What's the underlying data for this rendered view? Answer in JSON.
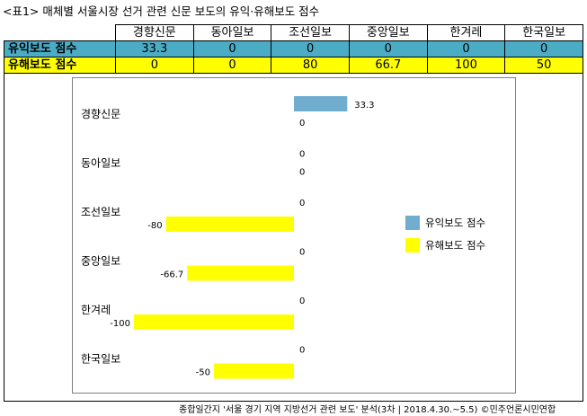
{
  "caption": "<표1> 매체별 서울시장 선거 관련 신문 보도의 유익·유해보도 점수",
  "table": {
    "columns": [
      "경향신문",
      "동아일보",
      "조선일보",
      "중앙일보",
      "한겨레",
      "한국일보"
    ],
    "rows": [
      {
        "label": "유익보도 점수",
        "values": [
          "33.3",
          "0",
          "0",
          "0",
          "0",
          "0"
        ]
      },
      {
        "label": "유해보도 점수",
        "values": [
          "0",
          "0",
          "80",
          "66.7",
          "100",
          "50"
        ]
      }
    ]
  },
  "chart_data": {
    "type": "bar",
    "orientation": "horizontal",
    "categories": [
      "경향신문",
      "동아일보",
      "조선일보",
      "중앙일보",
      "한겨레",
      "한국일보"
    ],
    "series": [
      {
        "name": "유익보도 점수",
        "values": [
          33.3,
          0,
          0,
          0,
          0,
          0
        ],
        "labels": [
          "33.3",
          "0",
          "0",
          "0",
          "0",
          "0"
        ],
        "color": "#70adcf"
      },
      {
        "name": "유해보도 점수",
        "values": [
          0,
          0,
          -80,
          -66.7,
          -100,
          -50
        ],
        "labels": [
          "0",
          "0",
          "-80",
          "-66.7",
          "-100",
          "-50"
        ],
        "color": "#ffff00"
      }
    ],
    "legend_position": "right",
    "xlim": [
      -100,
      33.3
    ]
  },
  "source": "종합일간지 '서울 경기 지역 지방선거 관련 보도' 분석(3차 | 2018.4.30.~5.5) ©민주언론시민연합"
}
